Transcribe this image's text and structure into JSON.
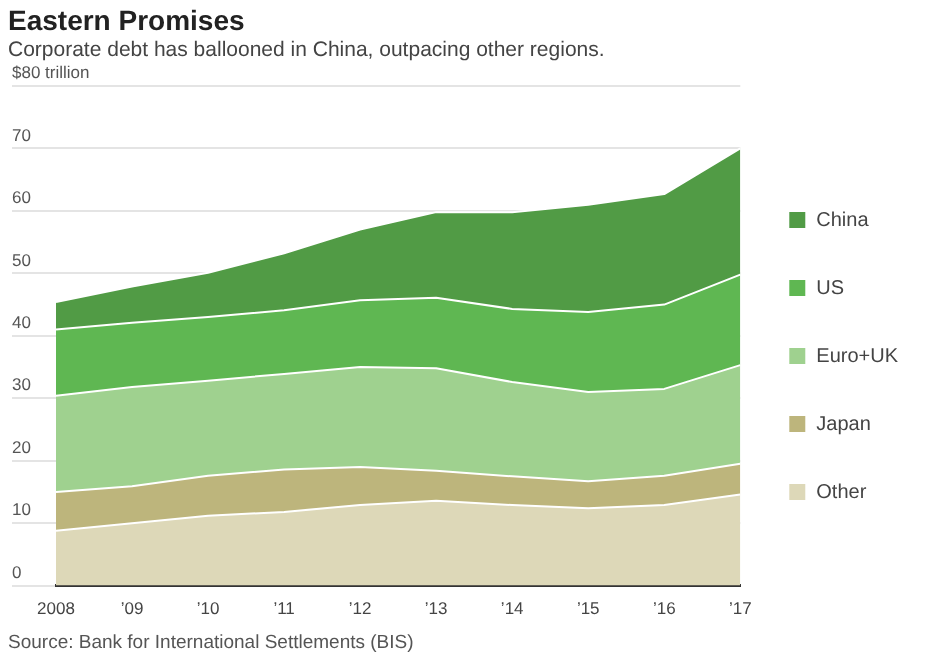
{
  "chart_data": {
    "type": "area",
    "title": "Eastern Promises",
    "subtitle": "Corporate debt has ballooned in China, outpacing other regions.",
    "annotations": [
      "Source: Bank for International Settlements (BIS)"
    ],
    "categories": [
      "2008",
      "’09",
      "’10",
      "’11",
      "’12",
      "’13",
      "’14",
      "’15",
      "’16",
      "’17"
    ],
    "stacked": true,
    "ylim": [
      0,
      80
    ],
    "yticks": [
      0,
      10,
      20,
      30,
      40,
      50,
      60,
      70,
      {
        "value": 80,
        "label": "$80 trillion"
      }
    ],
    "grid": "y",
    "legend": "right",
    "series": [
      {
        "name": "Other",
        "color": "#ddd8b8",
        "values": [
          8.8,
          10.0,
          11.2,
          11.8,
          12.9,
          13.6,
          12.9,
          12.4,
          12.9,
          14.6
        ]
      },
      {
        "name": "Japan",
        "color": "#bdb57c",
        "values": [
          6.2,
          5.9,
          6.4,
          6.8,
          6.1,
          4.8,
          4.6,
          4.3,
          4.7,
          4.9
        ]
      },
      {
        "name": "Euro+UK",
        "color": "#9fd18f",
        "values": [
          15.4,
          15.9,
          15.2,
          15.3,
          16.0,
          16.4,
          15.1,
          14.3,
          13.9,
          15.8
        ]
      },
      {
        "name": "US",
        "color": "#5fb752",
        "values": [
          10.6,
          10.3,
          10.2,
          10.2,
          10.7,
          11.3,
          11.7,
          12.8,
          13.5,
          14.5
        ]
      },
      {
        "name": "China",
        "color": "#519b45",
        "values": [
          4.4,
          5.8,
          7.1,
          9.1,
          11.3,
          13.7,
          15.5,
          17.2,
          17.7,
          20.2
        ]
      }
    ]
  }
}
